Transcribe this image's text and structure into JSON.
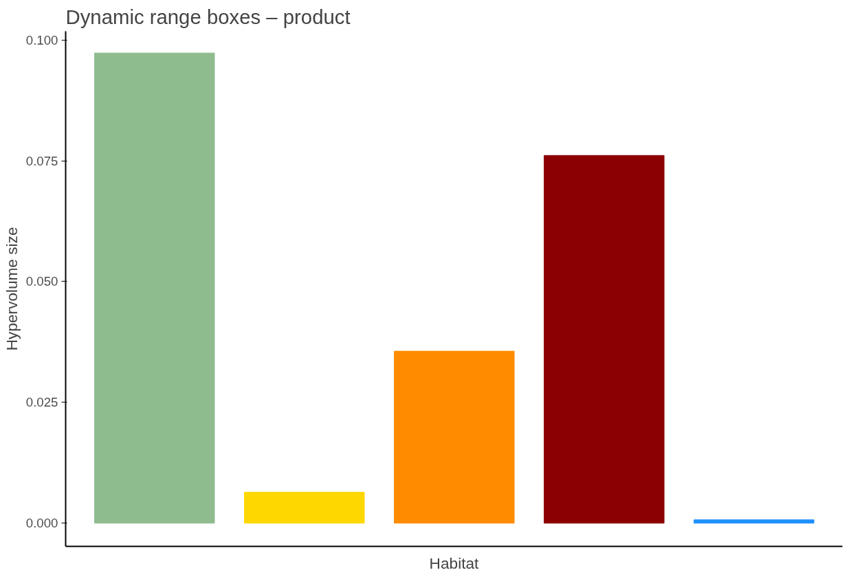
{
  "chart_data": {
    "type": "bar",
    "title": "Dynamic range boxes – product",
    "xlabel": "Habitat",
    "ylabel": "Hypervolume size",
    "categories": [
      null,
      null,
      null,
      null,
      null
    ],
    "values": [
      0.0973,
      0.0064,
      0.0356,
      0.0761,
      0.0007
    ],
    "colors": [
      "#8fbc8f",
      "#ffd700",
      "#ff8c00",
      "#8b0000",
      "#1e90ff"
    ],
    "ylim": [
      -0.0048,
      0.1018
    ],
    "yticks": [
      {
        "value": 0,
        "label": "0.000"
      },
      {
        "value": 0.025,
        "label": "0.025"
      },
      {
        "value": 0.05,
        "label": "0.050"
      },
      {
        "value": 0.075,
        "label": "0.075"
      },
      {
        "value": 0.1,
        "label": "0.100"
      }
    ],
    "grid": false
  }
}
